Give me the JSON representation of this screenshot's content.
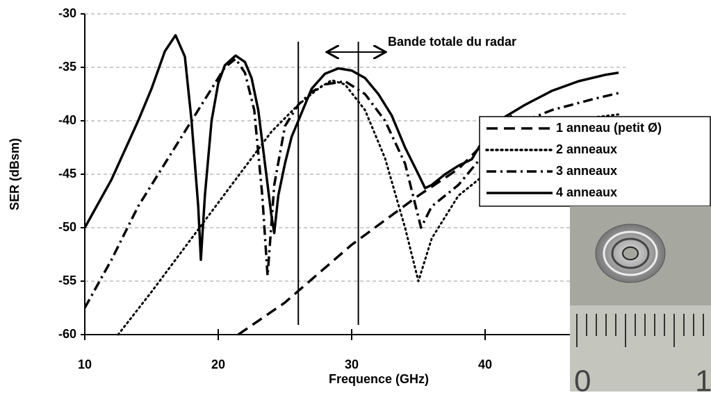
{
  "chart_data": {
    "type": "line",
    "xlabel": "Frequence (GHz)",
    "ylabel": "SER (dBsm)",
    "xlim": [
      10,
      50
    ],
    "xticks": [
      10,
      20,
      30,
      40
    ],
    "ylim": [
      -60,
      -30
    ],
    "yticks": [
      -60,
      -55,
      -50,
      -45,
      -40,
      -35,
      -30
    ],
    "grid": true,
    "vlines": [
      26,
      30.5
    ],
    "annotation": "Bande totale du radar",
    "series": [
      {
        "name": "1 anneau (petit Ø)",
        "color": "#000000",
        "dash": "dash",
        "x": [
          21.5,
          25,
          30,
          35,
          38,
          40,
          42
        ],
        "values": [
          -60,
          -57,
          -51.6,
          -47,
          -44.5,
          -42,
          -39.5
        ]
      },
      {
        "name": "2 anneaux",
        "color": "#000000",
        "dash": "dot",
        "x": [
          12.5,
          15,
          18,
          21,
          24,
          26,
          27.5,
          28.5,
          29.5,
          31,
          32.5,
          34,
          35,
          36,
          38,
          40,
          42,
          45,
          48,
          50
        ],
        "values": [
          -60,
          -56,
          -51,
          -46,
          -41,
          -38.5,
          -37,
          -36.2,
          -36.6,
          -39,
          -43.5,
          -50,
          -55,
          -51,
          -47,
          -45,
          -42,
          -40.2,
          -39.7,
          -39.4
        ]
      },
      {
        "name": "3 anneaux",
        "color": "#000000",
        "dash": "dashdot",
        "x": [
          10,
          12,
          14,
          16,
          18,
          19.5,
          20.5,
          21.3,
          22,
          22.7,
          23.3,
          23.7,
          24.2,
          25,
          26,
          27,
          28,
          29.5,
          31,
          32.5,
          34,
          35.2,
          36,
          38,
          40,
          42,
          45,
          48,
          50
        ],
        "values": [
          -57.5,
          -53,
          -48,
          -44,
          -40,
          -37,
          -35,
          -34.2,
          -35.5,
          -39,
          -47,
          -54.5,
          -46,
          -40.5,
          -38.5,
          -37.3,
          -36.6,
          -36.3,
          -37.5,
          -40,
          -44,
          -50,
          -48,
          -46,
          -43,
          -40.5,
          -39,
          -38,
          -37.4
        ]
      },
      {
        "name": "4 anneaux",
        "color": "#000000",
        "dash": "solid",
        "x": [
          10,
          12,
          14,
          15,
          16,
          16.8,
          17.5,
          18,
          18.5,
          18.7,
          19,
          19.5,
          20,
          20.5,
          21.3,
          22,
          22.5,
          23,
          23.5,
          24,
          24.2,
          24.5,
          25,
          25.5,
          26,
          27,
          28,
          29,
          30,
          31,
          32,
          33,
          34,
          35,
          35.5,
          36,
          37,
          38,
          39,
          40,
          41,
          43,
          45,
          47,
          49,
          50
        ],
        "values": [
          -50,
          -45.5,
          -40,
          -37,
          -33.5,
          -32,
          -34,
          -40,
          -48,
          -53,
          -47,
          -40,
          -36.5,
          -34.8,
          -33.9,
          -34.5,
          -36,
          -39,
          -44,
          -49,
          -50.5,
          -47,
          -44,
          -41.5,
          -40,
          -37,
          -35.6,
          -35.1,
          -35.3,
          -36,
          -37.5,
          -39.5,
          -42.5,
          -45,
          -46.3,
          -46,
          -45,
          -44.2,
          -43.6,
          -41.5,
          -40,
          -38.5,
          -37.2,
          -36.3,
          -35.7,
          -35.5
        ]
      }
    ],
    "photo_labels": [
      "0",
      "1"
    ]
  }
}
